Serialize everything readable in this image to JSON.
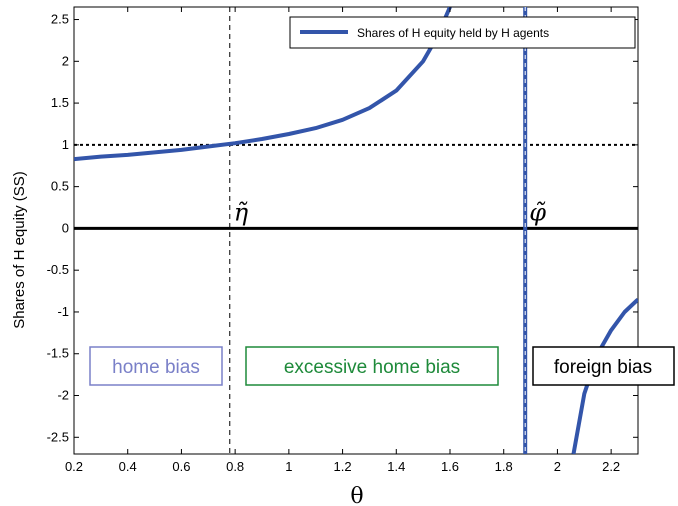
{
  "chart_data": {
    "type": "line",
    "xlabel": "θ",
    "ylabel": "Shares of H equity (SS)",
    "xlim": [
      0.2,
      2.3
    ],
    "ylim": [
      -2.7,
      2.65
    ],
    "grid": false,
    "legend_placement": "top-right",
    "x_ticks": [
      "0.2",
      "0.4",
      "0.6",
      "0.8",
      "1",
      "1.2",
      "1.4",
      "1.6",
      "1.8",
      "2",
      "2.2"
    ],
    "y_ticks": [
      "2.5",
      "2",
      "1.5",
      "1",
      "0.5",
      "0",
      "-0.5",
      "-1",
      "-1.5",
      "-2",
      "-2.5"
    ],
    "series": [
      {
        "name": "Shares of H equity held by H agents",
        "color": "#3355aa",
        "segments": [
          {
            "x": [
              0.2,
              0.3,
              0.4,
              0.5,
              0.6,
              0.7,
              0.8,
              0.9,
              1.0,
              1.1,
              1.2,
              1.3,
              1.4,
              1.5,
              1.55,
              1.6
            ],
            "y": [
              0.83,
              0.86,
              0.88,
              0.91,
              0.94,
              0.98,
              1.02,
              1.07,
              1.13,
              1.2,
              1.3,
              1.44,
              1.65,
              2.0,
              2.28,
              2.65
            ]
          },
          {
            "x": [
              2.06,
              2.1,
              2.15,
              2.2,
              2.25,
              2.3
            ],
            "y": [
              -2.7,
              -1.98,
              -1.5,
              -1.22,
              -1.0,
              -0.85
            ]
          }
        ]
      }
    ],
    "reference_lines": [
      {
        "orientation": "horizontal",
        "value": 1,
        "style": "dotted"
      },
      {
        "orientation": "horizontal",
        "value": 0,
        "style": "solid"
      },
      {
        "orientation": "vertical",
        "value": 0.78,
        "style": "dashed"
      },
      {
        "orientation": "vertical",
        "value": 1.88,
        "style": "asymptote"
      }
    ],
    "annotations": {
      "eta": {
        "text": "η̃",
        "x": 0.78
      },
      "phi": {
        "text": "φ̃",
        "x": 1.88
      },
      "home_bias": {
        "text": "home bias",
        "color": "#7a80c8"
      },
      "excessive_home_bias": {
        "text": "excessive home bias",
        "color": "#1e8a3a"
      },
      "foreign_bias": {
        "text": "foreign bias",
        "color": "#000000"
      }
    }
  }
}
